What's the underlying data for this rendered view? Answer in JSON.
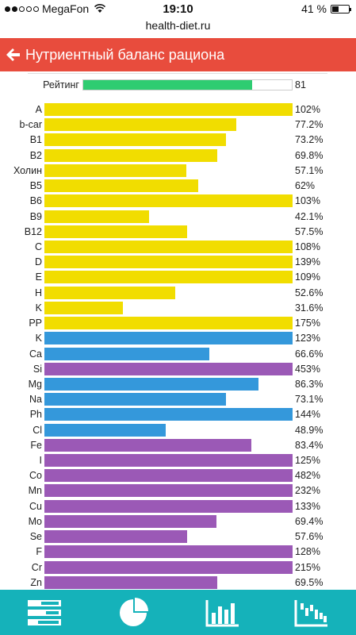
{
  "status_bar": {
    "carrier": "MegaFon",
    "time": "19:10",
    "battery": "41 %",
    "battery_level": 0.41,
    "signal_bars": 2
  },
  "browser": {
    "url": "health-diet.ru"
  },
  "header": {
    "title": "Нутриентный баланс рациона",
    "back_icon": "arrow-left-icon"
  },
  "rating": {
    "label": "Рейтинг",
    "value": "81",
    "fill": 0.81,
    "color": "#2ecc71"
  },
  "colors": {
    "vitamin": "#f1dd00",
    "mineral_blue": "#3498db",
    "mineral_purple": "#9b59b6",
    "header": "#e84c3d",
    "tabbar": "#15b2ba"
  },
  "nutrients": [
    {
      "name": "A",
      "pct": "102%",
      "value": 102,
      "color": "#f1dd00"
    },
    {
      "name": "b-car",
      "pct": "77.2%",
      "value": 77.2,
      "color": "#f1dd00"
    },
    {
      "name": "B1",
      "pct": "73.2%",
      "value": 73.2,
      "color": "#f1dd00"
    },
    {
      "name": "B2",
      "pct": "69.8%",
      "value": 69.8,
      "color": "#f1dd00"
    },
    {
      "name": "Холин",
      "pct": "57.1%",
      "value": 57.1,
      "color": "#f1dd00"
    },
    {
      "name": "B5",
      "pct": "62%",
      "value": 62,
      "color": "#f1dd00"
    },
    {
      "name": "B6",
      "pct": "103%",
      "value": 103,
      "color": "#f1dd00"
    },
    {
      "name": "B9",
      "pct": "42.1%",
      "value": 42.1,
      "color": "#f1dd00"
    },
    {
      "name": "B12",
      "pct": "57.5%",
      "value": 57.5,
      "color": "#f1dd00"
    },
    {
      "name": "C",
      "pct": "108%",
      "value": 108,
      "color": "#f1dd00"
    },
    {
      "name": "D",
      "pct": "139%",
      "value": 139,
      "color": "#f1dd00"
    },
    {
      "name": "E",
      "pct": "109%",
      "value": 109,
      "color": "#f1dd00"
    },
    {
      "name": "H",
      "pct": "52.6%",
      "value": 52.6,
      "color": "#f1dd00"
    },
    {
      "name": "K",
      "pct": "31.6%",
      "value": 31.6,
      "color": "#f1dd00"
    },
    {
      "name": "PP",
      "pct": "175%",
      "value": 175,
      "color": "#f1dd00"
    },
    {
      "name": "K",
      "pct": "123%",
      "value": 123,
      "color": "#3498db"
    },
    {
      "name": "Ca",
      "pct": "66.6%",
      "value": 66.6,
      "color": "#3498db"
    },
    {
      "name": "Si",
      "pct": "453%",
      "value": 453,
      "color": "#9b59b6"
    },
    {
      "name": "Mg",
      "pct": "86.3%",
      "value": 86.3,
      "color": "#3498db"
    },
    {
      "name": "Na",
      "pct": "73.1%",
      "value": 73.1,
      "color": "#3498db"
    },
    {
      "name": "Ph",
      "pct": "144%",
      "value": 144,
      "color": "#3498db"
    },
    {
      "name": "Cl",
      "pct": "48.9%",
      "value": 48.9,
      "color": "#3498db"
    },
    {
      "name": "Fe",
      "pct": "83.4%",
      "value": 83.4,
      "color": "#9b59b6"
    },
    {
      "name": "I",
      "pct": "125%",
      "value": 125,
      "color": "#9b59b6"
    },
    {
      "name": "Co",
      "pct": "482%",
      "value": 482,
      "color": "#9b59b6"
    },
    {
      "name": "Mn",
      "pct": "232%",
      "value": 232,
      "color": "#9b59b6"
    },
    {
      "name": "Cu",
      "pct": "133%",
      "value": 133,
      "color": "#9b59b6"
    },
    {
      "name": "Mo",
      "pct": "69.4%",
      "value": 69.4,
      "color": "#9b59b6"
    },
    {
      "name": "Se",
      "pct": "57.6%",
      "value": 57.6,
      "color": "#9b59b6"
    },
    {
      "name": "F",
      "pct": "128%",
      "value": 128,
      "color": "#9b59b6"
    },
    {
      "name": "Cr",
      "pct": "215%",
      "value": 215,
      "color": "#9b59b6"
    },
    {
      "name": "Zn",
      "pct": "69.5%",
      "value": 69.5,
      "color": "#9b59b6"
    }
  ],
  "tabs": [
    {
      "icon": "list-table-icon"
    },
    {
      "icon": "pie-chart-icon"
    },
    {
      "icon": "bar-chart-icon"
    },
    {
      "icon": "waterfall-chart-icon"
    }
  ]
}
